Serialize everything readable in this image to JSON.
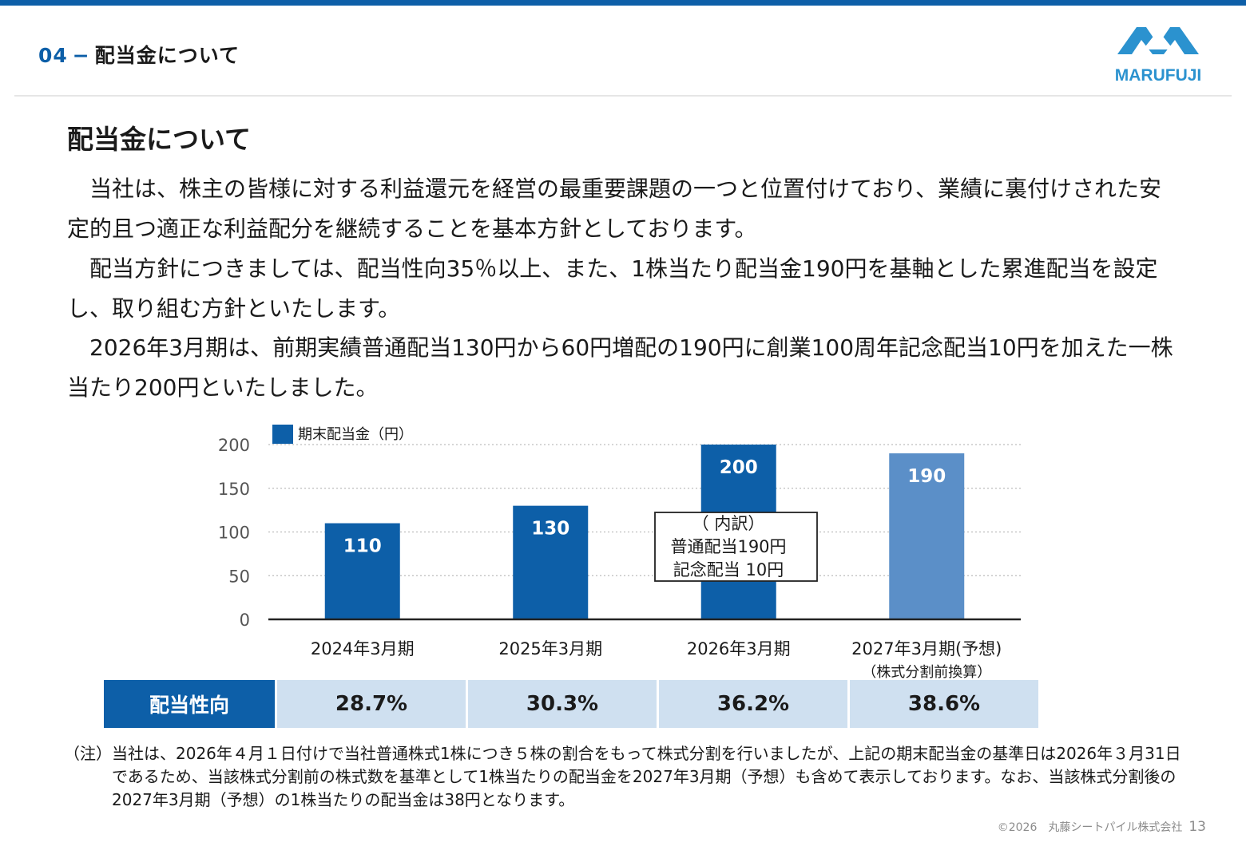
{
  "header": {
    "section_number": "04",
    "section_dash": "−",
    "section_title": "配当金について",
    "logo_text": "MARUFUJI"
  },
  "heading": "配当金について",
  "paragraphs": [
    "　当社は、株主の皆様に対する利益還元を経営の最重要課題の一つと位置付けており、業績に裏付けされた安定的且つ適正な利益配分を継続することを基本方針としております。",
    "　配当方針につきましては、配当性向35％以上、また、1株当たり配当金190円を基軸とした累進配当を設定し、取り組む方針といたします。",
    "　2026年3月期は、前期実績普通配当130円から60円増配の190円に創業100周年記念配当10円を加えた一株当たり200円といたしました。"
  ],
  "colors": {
    "accent": "#0d5fa8",
    "bar": "#0d5fa8",
    "bar_forecast": "#5b8fc8",
    "table_cell": "#cfe0f0"
  },
  "chart_data": {
    "type": "bar",
    "categories": [
      "2024年3月期",
      "2025年3月期",
      "2026年3月期",
      "2027年3月期(予想)"
    ],
    "category_sublabels": [
      "",
      "",
      "",
      "（株式分割前換算）"
    ],
    "series": [
      {
        "name": "期末配当金（円）",
        "values": [
          110,
          130,
          200,
          190
        ]
      }
    ],
    "forecast_index": 3,
    "yticks": [
      0,
      50,
      100,
      150,
      200
    ],
    "ylim": [
      0,
      200
    ],
    "grid": true,
    "legend_position": "top-left",
    "annotation": [
      "（ 内訳）",
      "普通配当190円",
      "記念配当  10円"
    ]
  },
  "payout_table": {
    "header": "配当性向",
    "values": [
      "28.7%",
      "30.3%",
      "36.2%",
      "38.6%"
    ]
  },
  "note": {
    "mark": "（注）",
    "text": "当社は、2026年４月１日付けで当社普通株式1株につき５株の割合をもって株式分割を行いましたが、上記の期末配当金の基準日は2026年３月31日であるため、当該株式分割前の株式数を基準として1株当たりの配当金を2027年3月期（予想）も含めて表示しております。なお、当該株式分割後の2027年3月期（予想）の1株当たりの配当金は38円となります。"
  },
  "footer": {
    "copyright": "©2026　丸藤シートパイル株式会社",
    "page": "13"
  }
}
